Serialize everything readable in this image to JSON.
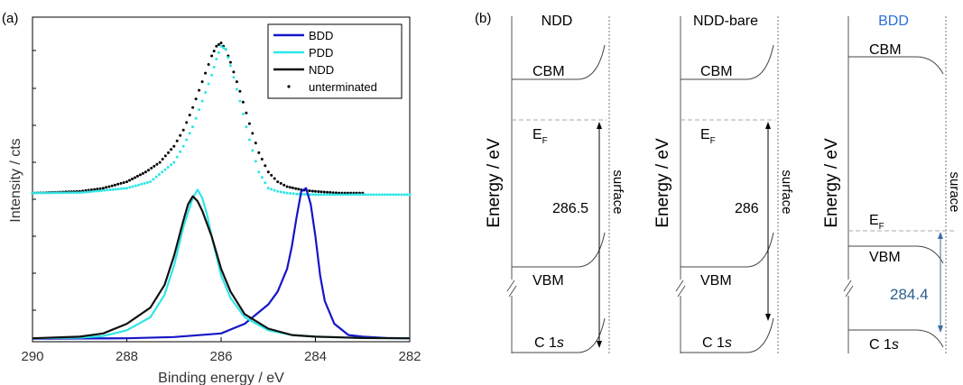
{
  "chart_data": [
    {
      "type": "line",
      "panel_label": "(a)",
      "xlabel": "Binding energy / eV",
      "ylabel": "Intensity / cts",
      "xlim": [
        290,
        282
      ],
      "x_reversed": true,
      "ylim": [
        0,
        1.0
      ],
      "xticks": [
        290,
        288,
        286,
        284,
        282
      ],
      "xtick_labels": [
        "290",
        "288",
        "286",
        "284",
        "282"
      ],
      "grid": false,
      "legend_position": "top-right",
      "legend": [
        "BDD",
        "PDD",
        "NDD",
        "unterminated"
      ],
      "colors": {
        "BDD": "#1515c8",
        "PDD": "#2ee6e6",
        "NDD": "#111111",
        "unterminated": "#000000"
      },
      "series": [
        {
          "name": "BDD",
          "style": "line",
          "x": [
            290.0,
            288.0,
            287.0,
            286.0,
            285.5,
            285.0,
            284.8,
            284.6,
            284.5,
            284.4,
            284.3,
            284.2,
            284.1,
            284.0,
            283.9,
            283.8,
            283.6,
            283.3,
            283.0,
            282.5,
            282.0
          ],
          "y": [
            0.004,
            0.005,
            0.009,
            0.02,
            0.05,
            0.11,
            0.15,
            0.22,
            0.29,
            0.38,
            0.46,
            0.47,
            0.42,
            0.32,
            0.2,
            0.12,
            0.05,
            0.015,
            0.01,
            0.006,
            0.005
          ]
        },
        {
          "name": "PDD",
          "style": "line",
          "x": [
            290.0,
            289.0,
            288.5,
            288.0,
            287.5,
            287.2,
            287.0,
            286.8,
            286.6,
            286.5,
            286.4,
            286.3,
            286.2,
            286.0,
            285.8,
            285.5,
            285.0,
            284.5,
            284.0,
            283.0,
            282.0
          ],
          "y": [
            0.005,
            0.007,
            0.012,
            0.03,
            0.07,
            0.14,
            0.23,
            0.35,
            0.44,
            0.465,
            0.44,
            0.39,
            0.32,
            0.2,
            0.13,
            0.07,
            0.03,
            0.015,
            0.01,
            0.006,
            0.005
          ]
        },
        {
          "name": "NDD",
          "style": "line",
          "x": [
            290.0,
            289.0,
            288.5,
            288.0,
            287.5,
            287.2,
            287.0,
            286.8,
            286.7,
            286.6,
            286.5,
            286.4,
            286.2,
            286.0,
            285.8,
            285.5,
            285.0,
            284.5,
            284.0,
            283.0,
            282.0
          ],
          "y": [
            0.005,
            0.01,
            0.02,
            0.05,
            0.1,
            0.17,
            0.26,
            0.37,
            0.42,
            0.445,
            0.43,
            0.4,
            0.32,
            0.22,
            0.15,
            0.08,
            0.035,
            0.015,
            0.01,
            0.006,
            0.005
          ]
        },
        {
          "name": "unterminated",
          "style": "dots",
          "x": [
            290.0,
            289.0,
            288.5,
            288.0,
            287.6,
            287.3,
            287.0,
            286.8,
            286.6,
            286.4,
            286.2,
            286.1,
            286.0,
            285.9,
            285.8,
            285.6,
            285.4,
            285.2,
            285.0,
            284.8,
            284.6,
            284.3,
            284.0,
            283.5,
            283.0
          ],
          "y": [
            0.455,
            0.46,
            0.47,
            0.49,
            0.52,
            0.55,
            0.6,
            0.65,
            0.72,
            0.8,
            0.88,
            0.91,
            0.92,
            0.9,
            0.86,
            0.77,
            0.67,
            0.58,
            0.52,
            0.49,
            0.475,
            0.465,
            0.46,
            0.455,
            0.455
          ]
        },
        {
          "name": "PDD (upper)",
          "style": "dots",
          "x": [
            290.0,
            289.0,
            288.0,
            287.5,
            287.0,
            286.8,
            286.6,
            286.4,
            286.2,
            286.1,
            286.0,
            285.9,
            285.8,
            285.6,
            285.4,
            285.2,
            285.0,
            284.8,
            284.6,
            284.4,
            284.0,
            283.0,
            282.0
          ],
          "y": [
            0.455,
            0.456,
            0.47,
            0.49,
            0.55,
            0.6,
            0.66,
            0.74,
            0.82,
            0.87,
            0.91,
            0.9,
            0.85,
            0.74,
            0.62,
            0.52,
            0.47,
            0.46,
            0.455,
            0.452,
            0.45,
            0.45,
            0.45
          ]
        }
      ]
    },
    {
      "type": "diagram",
      "panel_label": "(b)",
      "ylabel": "Energy / eV",
      "surface_label": "surface",
      "surface_label_bdd": "surace",
      "bands": [
        {
          "title": "NDD",
          "title_color": "#000000",
          "cbm": "CBM",
          "ef": "E",
          "ef_sub": "F",
          "vbm": "VBM",
          "c1s": "C 1",
          "c1s_italic": "s",
          "value": "286.5",
          "value_color": "#000000",
          "arrow_color": "#000000"
        },
        {
          "title": "NDD-bare",
          "title_color": "#000000",
          "cbm": "CBM",
          "ef": "E",
          "ef_sub": "F",
          "vbm": "VBM",
          "c1s": "C 1",
          "c1s_italic": "s",
          "value": "286",
          "value_color": "#000000",
          "arrow_color": "#000000"
        },
        {
          "title": "BDD",
          "title_color": "#2b6fd6",
          "cbm": "CBM",
          "ef": "E",
          "ef_sub": "F",
          "vbm": "VBM",
          "c1s": "C 1",
          "c1s_italic": "s",
          "value": "284.4",
          "value_color": "#2b5f8f",
          "arrow_color": "#3a6fa0"
        }
      ]
    }
  ]
}
